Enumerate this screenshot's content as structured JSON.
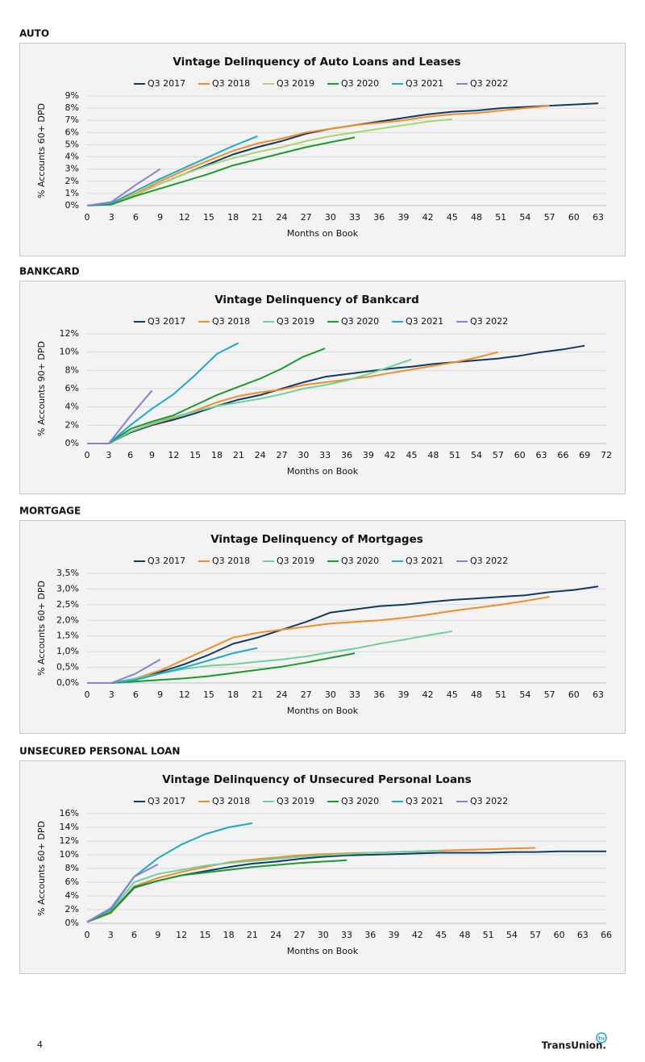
{
  "chart_data": [
    {
      "section": "AUTO",
      "type": "line",
      "title": "Vintage Delinquency of Auto Loans and Leases",
      "x_label": "Months on Book",
      "y_label": "% Accounts 60+ DPD",
      "x": [
        0,
        3,
        6,
        9,
        12,
        15,
        18,
        21,
        24,
        27,
        30,
        33,
        36,
        39,
        42,
        45,
        48,
        51,
        54,
        57,
        60,
        63
      ],
      "xlim": [
        0,
        64
      ],
      "xticks": [
        0,
        3,
        6,
        9,
        12,
        15,
        18,
        21,
        24,
        27,
        30,
        33,
        36,
        39,
        42,
        45,
        48,
        51,
        54,
        57,
        60,
        63
      ],
      "ylim": [
        0,
        9
      ],
      "yticks": [
        {
          "value": 0,
          "label": "0%"
        },
        {
          "value": 1,
          "label": "1%"
        },
        {
          "value": 2,
          "label": "2%"
        },
        {
          "value": 3,
          "label": "3%"
        },
        {
          "value": 4,
          "label": "4%"
        },
        {
          "value": 5,
          "label": "5%"
        },
        {
          "value": 6,
          "label": "6%"
        },
        {
          "value": 7,
          "label": "7%"
        },
        {
          "value": 8,
          "label": "8%"
        },
        {
          "value": 9,
          "label": "9%"
        }
      ],
      "grid": true,
      "legend": "top",
      "series": [
        {
          "name": "Q3 2017",
          "color": "#0d3b66",
          "values": [
            0,
            0.1,
            0.9,
            1.8,
            2.6,
            3.4,
            4.2,
            4.8,
            5.3,
            5.9,
            6.3,
            6.6,
            6.9,
            7.2,
            7.5,
            7.7,
            7.8,
            8.0,
            8.1,
            8.2,
            8.3,
            8.4
          ]
        },
        {
          "name": "Q3 2018",
          "color": "#f28c28",
          "values": [
            0,
            0.1,
            1.0,
            2.0,
            2.9,
            3.7,
            4.5,
            5.1,
            5.5,
            6.0,
            6.3,
            6.6,
            6.8,
            7.0,
            7.3,
            7.5,
            7.6,
            7.8,
            8.0,
            8.2,
            null,
            null
          ]
        },
        {
          "name": "Q3 2019",
          "color": "#a8d672",
          "values": [
            0,
            0.1,
            0.9,
            1.8,
            2.6,
            3.3,
            3.9,
            4.4,
            4.8,
            5.3,
            5.7,
            6.0,
            6.3,
            6.6,
            6.9,
            7.1,
            null,
            null,
            null,
            null,
            null,
            null
          ]
        },
        {
          "name": "Q3 2020",
          "color": "#1a9a2a",
          "values": [
            0,
            0.1,
            0.8,
            1.4,
            2.0,
            2.6,
            3.3,
            3.8,
            4.3,
            4.8,
            5.2,
            5.6,
            null,
            null,
            null,
            null,
            null,
            null,
            null,
            null,
            null,
            null
          ]
        },
        {
          "name": "Q3 2021",
          "color": "#1fa8c9",
          "values": [
            0,
            0.2,
            1.2,
            2.2,
            3.1,
            4.0,
            4.9,
            5.7,
            null,
            null,
            null,
            null,
            null,
            null,
            null,
            null,
            null,
            null,
            null,
            null,
            null,
            null
          ]
        },
        {
          "name": "Q3 2022",
          "color": "#8a7fd8",
          "values": [
            0,
            0.3,
            1.7,
            3.0,
            null,
            null,
            null,
            null,
            null,
            null,
            null,
            null,
            null,
            null,
            null,
            null,
            null,
            null,
            null,
            null,
            null,
            null
          ]
        }
      ]
    },
    {
      "section": "BANKCARD",
      "type": "line",
      "title": "Vintage Delinquency of Bankcard",
      "x_label": "Months on Book",
      "y_label": "% Accounts 90+ DPD",
      "x": [
        0,
        3,
        6,
        9,
        12,
        15,
        18,
        21,
        24,
        27,
        30,
        33,
        36,
        39,
        42,
        45,
        48,
        51,
        54,
        57,
        60,
        63,
        66,
        69,
        72
      ],
      "xlim": [
        0,
        72
      ],
      "xticks": [
        0,
        3,
        6,
        9,
        12,
        15,
        18,
        21,
        24,
        27,
        30,
        33,
        36,
        39,
        42,
        45,
        48,
        51,
        54,
        57,
        60,
        63,
        66,
        69,
        72
      ],
      "ylim": [
        0,
        12
      ],
      "yticks": [
        {
          "value": 0,
          "label": "0%"
        },
        {
          "value": 2,
          "label": "2%"
        },
        {
          "value": 4,
          "label": "4%"
        },
        {
          "value": 6,
          "label": "6%"
        },
        {
          "value": 8,
          "label": "8%"
        },
        {
          "value": 10,
          "label": "10%"
        },
        {
          "value": 12,
          "label": "12%"
        }
      ],
      "grid": true,
      "legend": "top",
      "series": [
        {
          "name": "Q3 2017",
          "color": "#0d3b66",
          "values": [
            0,
            0,
            1.2,
            2.0,
            2.6,
            3.3,
            4.1,
            4.8,
            5.3,
            6.0,
            6.7,
            7.3,
            7.6,
            7.9,
            8.2,
            8.4,
            8.7,
            8.9,
            9.1,
            9.3,
            9.6,
            10.0,
            10.3,
            10.7,
            null
          ]
        },
        {
          "name": "Q3 2018",
          "color": "#f28c28",
          "values": [
            0,
            0,
            1.3,
            2.1,
            2.8,
            3.6,
            4.5,
            5.2,
            5.6,
            5.9,
            6.4,
            6.7,
            7.0,
            7.3,
            7.7,
            8.1,
            8.5,
            8.9,
            9.4,
            10.0,
            null,
            null,
            null,
            null,
            null
          ]
        },
        {
          "name": "Q3 2019",
          "color": "#6fd19a",
          "values": [
            0,
            0,
            1.3,
            2.2,
            2.9,
            3.5,
            4.1,
            4.5,
            4.9,
            5.4,
            6.0,
            6.4,
            6.9,
            7.6,
            8.4,
            9.2,
            null,
            null,
            null,
            null,
            null,
            null,
            null,
            null,
            null
          ]
        },
        {
          "name": "Q3 2020",
          "color": "#1a9a2a",
          "values": [
            0,
            0,
            1.6,
            2.4,
            3.1,
            4.2,
            5.3,
            6.2,
            7.1,
            8.2,
            9.5,
            10.4,
            null,
            null,
            null,
            null,
            null,
            null,
            null,
            null,
            null,
            null,
            null,
            null,
            null
          ]
        },
        {
          "name": "Q3 2021",
          "color": "#1fa8c9",
          "values": [
            0,
            0,
            2.0,
            3.8,
            5.4,
            7.5,
            9.8,
            11.0,
            null,
            null,
            null,
            null,
            null,
            null,
            null,
            null,
            null,
            null,
            null,
            null,
            null,
            null,
            null,
            null,
            null
          ]
        },
        {
          "name": "Q3 2022",
          "color": "#8a7fd8",
          "values": [
            0,
            0,
            3.0,
            5.8,
            null,
            null,
            null,
            null,
            null,
            null,
            null,
            null,
            null,
            null,
            null,
            null,
            null,
            null,
            null,
            null,
            null,
            null,
            null,
            null,
            null
          ]
        }
      ]
    },
    {
      "section": "MORTGAGE",
      "type": "line",
      "title": "Vintage Delinquency of Mortgages",
      "x_label": "Months on Book",
      "y_label": "% Accounts 60+ DPD",
      "x": [
        0,
        3,
        6,
        9,
        12,
        15,
        18,
        21,
        24,
        27,
        30,
        33,
        36,
        39,
        42,
        45,
        48,
        51,
        54,
        57,
        60,
        63
      ],
      "xlim": [
        0,
        64
      ],
      "xticks": [
        0,
        3,
        6,
        9,
        12,
        15,
        18,
        21,
        24,
        27,
        30,
        33,
        36,
        39,
        42,
        45,
        48,
        51,
        54,
        57,
        60,
        63
      ],
      "ylim": [
        0,
        3.5
      ],
      "yticks": [
        {
          "value": 0,
          "label": "0,0%"
        },
        {
          "value": 0.5,
          "label": "0,5%"
        },
        {
          "value": 1,
          "label": "1,0%"
        },
        {
          "value": 1.5,
          "label": "1,5%"
        },
        {
          "value": 2,
          "label": "2,0%"
        },
        {
          "value": 2.5,
          "label": "2,5%"
        },
        {
          "value": 3,
          "label": "3,0%"
        },
        {
          "value": 3.5,
          "label": "3,5%"
        }
      ],
      "grid": true,
      "legend": "top",
      "series": [
        {
          "name": "Q3 2017",
          "color": "#0d3b66",
          "values": [
            0,
            0,
            0.1,
            0.35,
            0.6,
            0.9,
            1.25,
            1.45,
            1.7,
            1.95,
            2.25,
            2.35,
            2.45,
            2.5,
            2.58,
            2.65,
            2.7,
            2.75,
            2.8,
            2.9,
            2.97,
            3.08
          ]
        },
        {
          "name": "Q3 2018",
          "color": "#f28c28",
          "values": [
            0,
            0,
            0.15,
            0.4,
            0.75,
            1.1,
            1.45,
            1.6,
            1.7,
            1.8,
            1.9,
            1.95,
            2.0,
            2.08,
            2.18,
            2.3,
            2.4,
            2.5,
            2.62,
            2.75,
            null,
            null
          ]
        },
        {
          "name": "Q3 2019",
          "color": "#6fd19a",
          "values": [
            0,
            0,
            0.15,
            0.3,
            0.45,
            0.55,
            0.6,
            0.68,
            0.75,
            0.85,
            0.98,
            1.1,
            1.25,
            1.38,
            1.52,
            1.65,
            null,
            null,
            null,
            null,
            null,
            null
          ]
        },
        {
          "name": "Q3 2020",
          "color": "#1a9a2a",
          "values": [
            0,
            0,
            0.05,
            0.1,
            0.15,
            0.22,
            0.32,
            0.42,
            0.52,
            0.65,
            0.8,
            0.95,
            null,
            null,
            null,
            null,
            null,
            null,
            null,
            null,
            null,
            null
          ]
        },
        {
          "name": "Q3 2021",
          "color": "#1fa8c9",
          "values": [
            0,
            0,
            0.1,
            0.3,
            0.5,
            0.72,
            0.95,
            1.12,
            null,
            null,
            null,
            null,
            null,
            null,
            null,
            null,
            null,
            null,
            null,
            null,
            null,
            null
          ]
        },
        {
          "name": "Q3 2022",
          "color": "#8a7fd8",
          "values": [
            0,
            0,
            0.3,
            0.75,
            null,
            null,
            null,
            null,
            null,
            null,
            null,
            null,
            null,
            null,
            null,
            null,
            null,
            null,
            null,
            null,
            null,
            null
          ]
        }
      ]
    },
    {
      "section": "UNSECURED PERSONAL LOAN",
      "type": "line",
      "title": "Vintage Delinquency of Unsecured Personal Loans",
      "x_label": "Months on Book",
      "y_label": "% Accounts 60+ DPD",
      "x": [
        0,
        3,
        6,
        9,
        12,
        15,
        18,
        21,
        24,
        27,
        30,
        33,
        36,
        39,
        42,
        45,
        48,
        51,
        54,
        57,
        60,
        63,
        66
      ],
      "xlim": [
        0,
        66
      ],
      "xticks": [
        0,
        3,
        6,
        9,
        12,
        15,
        18,
        21,
        24,
        27,
        30,
        33,
        36,
        39,
        42,
        45,
        48,
        51,
        54,
        57,
        60,
        63,
        66
      ],
      "ylim": [
        0,
        16
      ],
      "yticks": [
        {
          "value": 0,
          "label": "0%"
        },
        {
          "value": 2,
          "label": "2%"
        },
        {
          "value": 4,
          "label": "4%"
        },
        {
          "value": 6,
          "label": "6%"
        },
        {
          "value": 8,
          "label": "8%"
        },
        {
          "value": 10,
          "label": "10%"
        },
        {
          "value": 12,
          "label": "12%"
        },
        {
          "value": 14,
          "label": "14%"
        },
        {
          "value": 16,
          "label": "16%"
        }
      ],
      "grid": true,
      "legend": "top",
      "series": [
        {
          "name": "Q3 2017",
          "color": "#0d3b66",
          "values": [
            0.2,
            1.5,
            5.2,
            6.2,
            7.0,
            7.6,
            8.2,
            8.7,
            9.0,
            9.4,
            9.7,
            9.9,
            10.0,
            10.1,
            10.2,
            10.3,
            10.3,
            10.3,
            10.4,
            10.4,
            10.5,
            10.5,
            10.5
          ]
        },
        {
          "name": "Q3 2018",
          "color": "#f28c28",
          "values": [
            0.2,
            1.5,
            5.4,
            6.6,
            7.5,
            8.2,
            8.9,
            9.3,
            9.6,
            9.9,
            10.1,
            10.2,
            10.3,
            10.4,
            10.5,
            10.6,
            10.7,
            10.8,
            10.9,
            11.0,
            null,
            null,
            null
          ]
        },
        {
          "name": "Q3 2019",
          "color": "#6fd19a",
          "values": [
            0.2,
            1.8,
            6.0,
            7.2,
            7.8,
            8.4,
            8.8,
            9.1,
            9.4,
            9.7,
            9.9,
            10.1,
            10.3,
            10.4,
            10.5,
            10.6,
            null,
            null,
            null,
            null,
            null,
            null,
            null
          ]
        },
        {
          "name": "Q3 2020",
          "color": "#1a9a2a",
          "values": [
            0.2,
            1.6,
            5.3,
            6.2,
            7.0,
            7.4,
            7.8,
            8.2,
            8.5,
            8.8,
            9.0,
            9.2,
            null,
            null,
            null,
            null,
            null,
            null,
            null,
            null,
            null,
            null,
            null
          ]
        },
        {
          "name": "Q3 2021",
          "color": "#1fa8c9",
          "values": [
            0.2,
            2.0,
            6.8,
            9.5,
            11.5,
            13.0,
            14.0,
            14.6,
            null,
            null,
            null,
            null,
            null,
            null,
            null,
            null,
            null,
            null,
            null,
            null,
            null,
            null,
            null
          ]
        },
        {
          "name": "Q3 2022",
          "color": "#8a7fd8",
          "values": [
            0.2,
            2.2,
            6.8,
            8.6,
            null,
            null,
            null,
            null,
            null,
            null,
            null,
            null,
            null,
            null,
            null,
            null,
            null,
            null,
            null,
            null,
            null,
            null,
            null
          ]
        }
      ]
    }
  ],
  "footer": {
    "page_number": "4",
    "logo": "TransUnion.",
    "logo_badge": "tu"
  }
}
